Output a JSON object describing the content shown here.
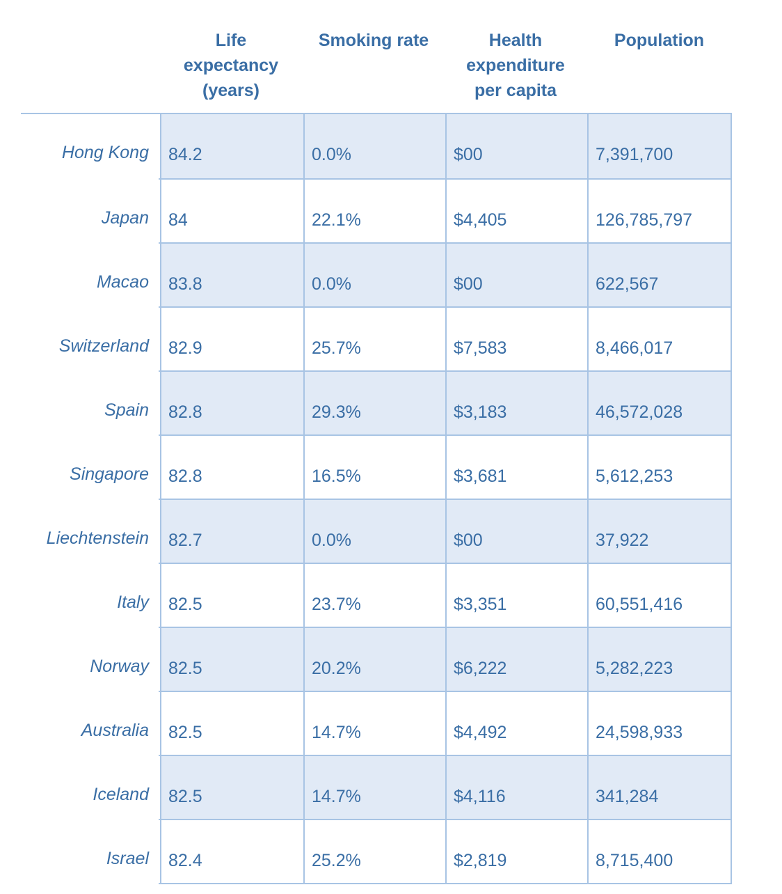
{
  "chart_data": {
    "type": "table",
    "columns": [
      "",
      "Life expectancy (years)",
      "Smoking rate",
      "Health expenditure per capita",
      "Population"
    ],
    "header_lines": [
      [
        ""
      ],
      [
        "Life",
        "expectancy",
        "(years)"
      ],
      [
        "Smoking rate"
      ],
      [
        "Health",
        "expenditure",
        "per capita"
      ],
      [
        "Population"
      ]
    ],
    "rows": [
      [
        "Hong Kong",
        "84.2",
        "0.0%",
        "$00",
        "7,391,700"
      ],
      [
        "Japan",
        "84",
        "22.1%",
        "$4,405",
        "126,785,797"
      ],
      [
        "Macao",
        "83.8",
        "0.0%",
        "$00",
        "622,567"
      ],
      [
        "Switzerland",
        "82.9",
        "25.7%",
        "$7,583",
        "8,466,017"
      ],
      [
        "Spain",
        "82.8",
        "29.3%",
        "$3,183",
        "46,572,028"
      ],
      [
        "Singapore",
        "82.8",
        "16.5%",
        "$3,681",
        "5,612,253"
      ],
      [
        "Liechtenstein",
        "82.7",
        "0.0%",
        "$00",
        "37,922"
      ],
      [
        "Italy",
        "82.5",
        "23.7%",
        "$3,351",
        "60,551,416"
      ],
      [
        "Norway",
        "82.5",
        "20.2%",
        "$6,222",
        "5,282,223"
      ],
      [
        "Australia",
        "82.5",
        "14.7%",
        "$4,492",
        "24,598,933"
      ],
      [
        "Iceland",
        "82.5",
        "14.7%",
        "$4,116",
        "341,284"
      ],
      [
        "Israel",
        "82.4",
        "25.2%",
        "$2,819",
        "8,715,400"
      ]
    ]
  },
  "colors": {
    "text": "#3a6ea5",
    "border": "#a8c4e4",
    "shaded_row": "#e1eaf6",
    "background": "#ffffff"
  }
}
